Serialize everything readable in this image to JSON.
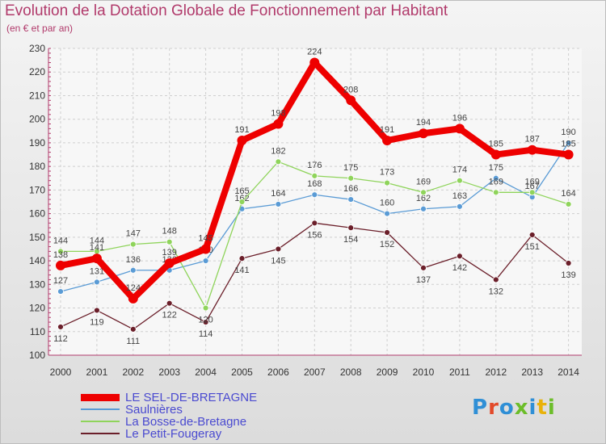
{
  "title": "Evolution de la Dotation Globale de Fonctionnement par Habitant",
  "subtitle": "(en € et par an)",
  "logo": {
    "text": "Proxiti",
    "colors": [
      "#2f8fd6",
      "#e24a2a",
      "#2f8fd6",
      "#6cbd2a",
      "#2f8fd6",
      "#e9b20a",
      "#6cbd2a"
    ]
  },
  "chart_data": {
    "type": "line",
    "x": [
      "2000",
      "2001",
      "2002",
      "2003",
      "2004",
      "2005",
      "2006",
      "2007",
      "2008",
      "2009",
      "2010",
      "2011",
      "2012",
      "2013",
      "2014"
    ],
    "ylim": [
      100,
      230
    ],
    "yticks": [
      "100",
      "110",
      "120",
      "130",
      "140",
      "150",
      "160",
      "170",
      "180",
      "190",
      "200",
      "210",
      "220",
      "230"
    ],
    "grid": "horizontal-dashed",
    "legend_position": "bottom-left",
    "series": [
      {
        "name": "LE SEL-DE-BRETAGNE",
        "color": "#ee0000",
        "values": [
          138,
          141,
          124,
          139,
          145,
          191,
          198,
          224,
          208,
          191,
          194,
          196,
          185,
          187,
          185
        ]
      },
      {
        "name": "Saulnières",
        "color": "#5a9bd5",
        "values": [
          127,
          131,
          136,
          136,
          140,
          162,
          164,
          168,
          166,
          160,
          162,
          163,
          175,
          167,
          190
        ]
      },
      {
        "name": "La Bosse-de-Bretagne",
        "color": "#8fd45b",
        "values": [
          144,
          144,
          147,
          148,
          120,
          165,
          182,
          176,
          175,
          173,
          169,
          174,
          169,
          169,
          164
        ]
      },
      {
        "name": "Le Petit-Fougeray",
        "color": "#6b1f2a",
        "values": [
          112,
          119,
          111,
          122,
          114,
          141,
          145,
          156,
          154,
          152,
          137,
          142,
          132,
          151,
          139
        ]
      }
    ]
  }
}
